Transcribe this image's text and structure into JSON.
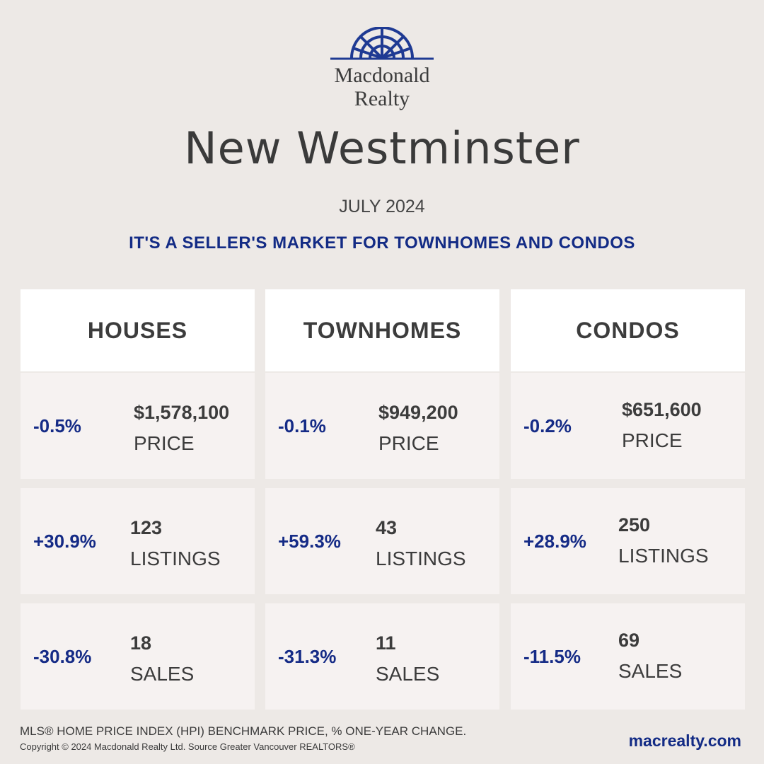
{
  "brand": {
    "line1": "Macdonald",
    "line2": "Realty",
    "logo_icon": "sunburst-arch-icon",
    "logo_color": "#1f3a93"
  },
  "title": "New Westminster",
  "date": "JULY 2024",
  "tagline": "IT'S A SELLER'S MARKET FOR TOWNHOMES AND CONDOS",
  "colors": {
    "accent": "#132b85",
    "background": "#ede9e6",
    "header_bg": "#ffffff",
    "card_bg": "#f6f2f1"
  },
  "columns": [
    {
      "heading": "HOUSES",
      "stats": [
        {
          "change": "-0.5%",
          "value": "$1,578,100",
          "label": "PRICE"
        },
        {
          "change": "+30.9%",
          "value": "123",
          "label": "LISTINGS"
        },
        {
          "change": "-30.8%",
          "value": "18",
          "label": "SALES"
        }
      ]
    },
    {
      "heading": "TOWNHOMES",
      "stats": [
        {
          "change": "-0.1%",
          "value": "$949,200",
          "label": "PRICE"
        },
        {
          "change": "+59.3%",
          "value": "43",
          "label": "LISTINGS"
        },
        {
          "change": "-31.3%",
          "value": "11",
          "label": "SALES"
        }
      ]
    },
    {
      "heading": "CONDOS",
      "stats": [
        {
          "change": "-0.2%",
          "value": "$651,600",
          "label": "PRICE"
        },
        {
          "change": "+28.9%",
          "value": "250",
          "label": "LISTINGS"
        },
        {
          "change": "-11.5%",
          "value": "69",
          "label": "SALES"
        }
      ]
    }
  ],
  "footer": {
    "note": "MLS® HOME PRICE INDEX (HPI) BENCHMARK PRICE, % ONE-YEAR CHANGE.",
    "copyright": "Copyright © 2024 Macdonald Realty Ltd. Source Greater Vancouver REALTORS®",
    "website": "macrealty.com"
  }
}
